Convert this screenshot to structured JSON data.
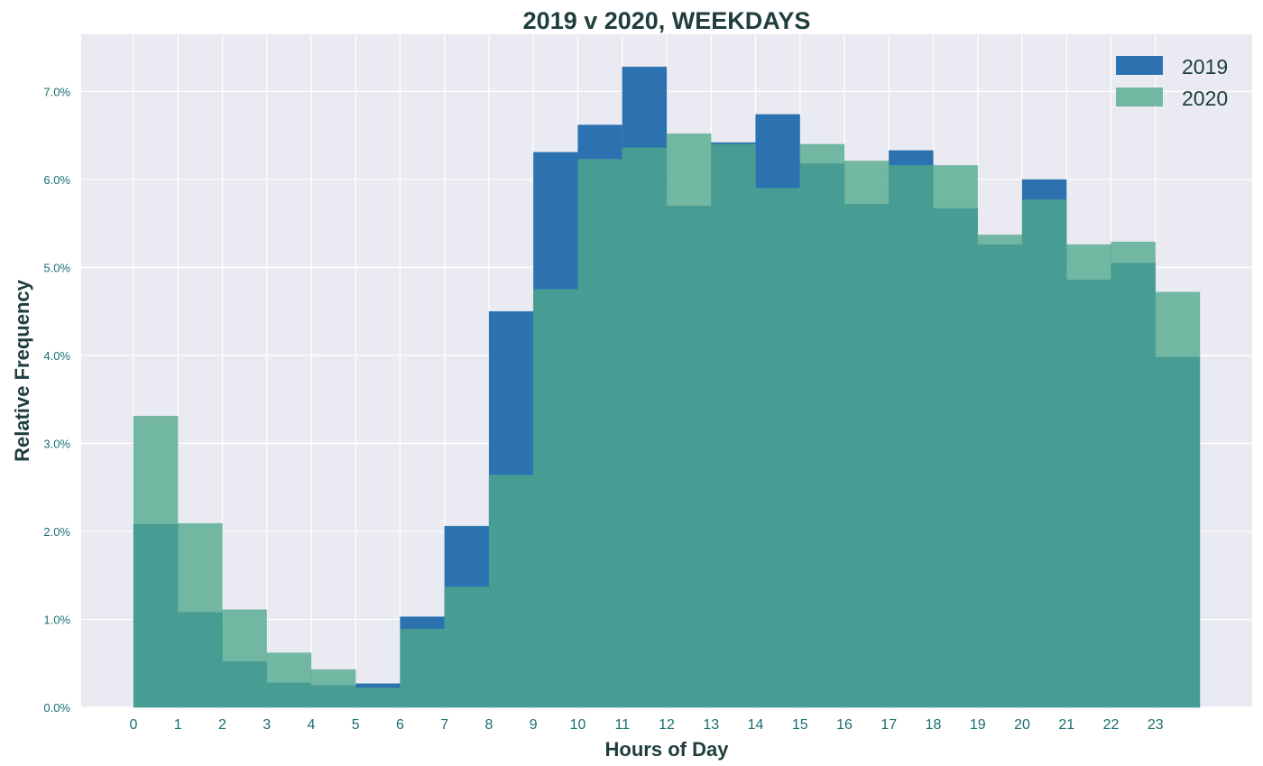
{
  "chart_data": {
    "type": "bar",
    "title": "2019 v 2020, WEEKDAYS",
    "xlabel": "Hours of Day",
    "ylabel": "Relative Frequency",
    "categories": [
      "0",
      "1",
      "2",
      "3",
      "4",
      "5",
      "6",
      "7",
      "8",
      "9",
      "10",
      "11",
      "12",
      "13",
      "14",
      "15",
      "16",
      "17",
      "18",
      "19",
      "20",
      "21",
      "22",
      "23"
    ],
    "series": [
      {
        "name": "2019",
        "color": "#2c72b0",
        "values": [
          2.08,
          1.08,
          0.52,
          0.28,
          0.25,
          0.27,
          1.03,
          2.06,
          4.5,
          6.31,
          6.62,
          7.28,
          5.7,
          6.42,
          6.74,
          6.18,
          5.72,
          6.33,
          5.67,
          5.26,
          6.0,
          4.86,
          5.05,
          3.98
        ]
      },
      {
        "name": "2020",
        "color": "#4fa88c",
        "values": [
          3.31,
          2.09,
          1.11,
          0.62,
          0.43,
          0.22,
          0.89,
          1.37,
          2.64,
          4.75,
          6.23,
          6.36,
          6.52,
          6.4,
          5.9,
          6.4,
          6.21,
          6.16,
          6.16,
          5.37,
          5.77,
          5.26,
          5.29,
          4.72
        ]
      }
    ],
    "ylim": [
      0,
      7.65
    ],
    "yticks": [
      "0.0%",
      "1.0%",
      "2.0%",
      "3.0%",
      "4.0%",
      "5.0%",
      "6.0%",
      "7.0%"
    ],
    "ytick_values": [
      0,
      1,
      2,
      3,
      4,
      5,
      6,
      7
    ],
    "grid": true,
    "legend_position": "top-right",
    "background_color": "#eaeaf2",
    "grid_color": "#ffffff"
  }
}
